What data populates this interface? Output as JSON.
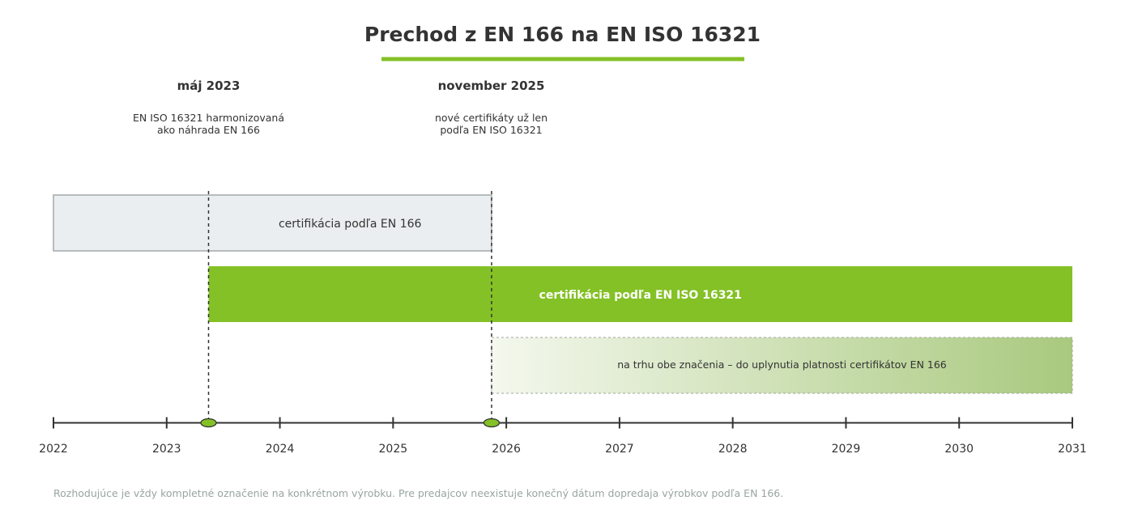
{
  "title": "Prechod z EN 166 na EN ISO 16321",
  "colors": {
    "accent": "#84c126",
    "text": "#333333",
    "legacy_fill": "#eaeef0",
    "legacy_border": "#a3a9ac",
    "overlap_start": "#f4f8ee",
    "overlap_end": "#a9c97e",
    "footnote": "#99a5a3"
  },
  "timeline": {
    "start_year": 2022,
    "end_year": 2031,
    "ticks": [
      "2022",
      "2023",
      "2024",
      "2025",
      "2026",
      "2027",
      "2028",
      "2029",
      "2030",
      "2031"
    ]
  },
  "milestones": [
    {
      "date_value": 2023.37,
      "title": "máj 2023",
      "desc_line1": "EN ISO 16321 harmonizovaná",
      "desc_line2": "ako náhrada EN 166"
    },
    {
      "date_value": 2025.87,
      "title": "november 2025",
      "desc_line1": "nové certifikáty už len",
      "desc_line2": "podľa EN ISO 16321"
    }
  ],
  "bars": [
    {
      "label": "certifikácia podľa EN 166",
      "start": 2022,
      "end": 2025.87,
      "style": "legacy"
    },
    {
      "label": "certifikácia podľa EN ISO 16321",
      "start": 2023.37,
      "end": 2031,
      "style": "accent"
    },
    {
      "label": "na trhu obe značenia – do uplynutia platnosti certifikátov EN 166",
      "start": 2025.87,
      "end": 2031,
      "style": "overlap"
    }
  ],
  "footnote": "Rozhodujúce je vždy kompletné označenie na konkrétnom výrobku. Pre predajcov neexistuje konečný dátum dopredaja výrobkov podľa EN 166."
}
